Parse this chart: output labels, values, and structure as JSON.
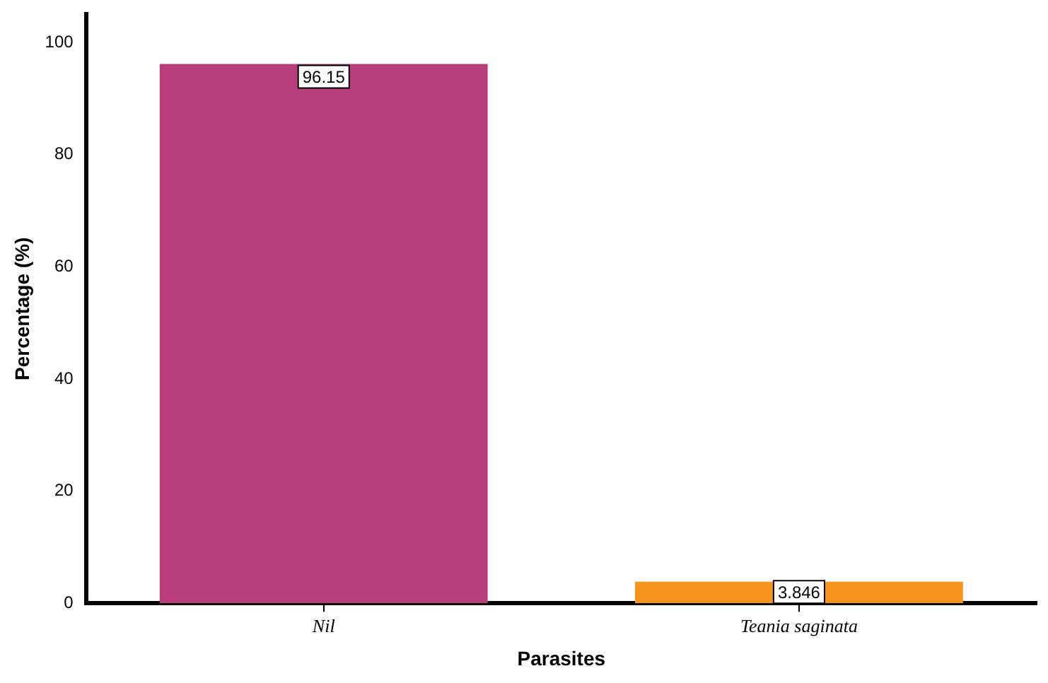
{
  "chart_data": {
    "type": "bar",
    "xlabel": "Parasites",
    "ylabel": "Percentage (%)",
    "categories": [
      "Nil",
      "Teania saginata"
    ],
    "values": [
      96.15,
      3.846
    ],
    "colors": [
      "#b83d7a",
      "#f7941d"
    ],
    "ylim": [
      0,
      105
    ],
    "yticks": [
      0,
      20,
      40,
      60,
      80,
      100
    ],
    "grid": false,
    "legend": false,
    "data_labels": true
  }
}
